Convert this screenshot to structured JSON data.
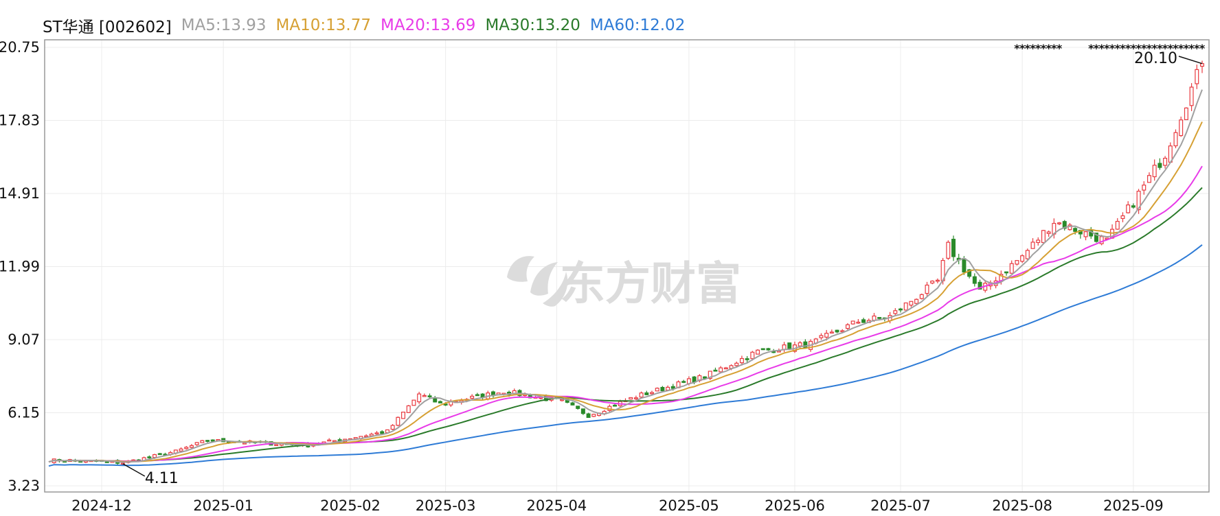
{
  "legend": {
    "stock": "ST华通 [002602]",
    "ma5": "MA5:13.93",
    "ma10": "MA10:13.77",
    "ma20": "MA20:13.69",
    "ma30": "MA30:13.20",
    "ma60": "MA60:12.02"
  },
  "colors": {
    "up": "#e8393f",
    "down": "#2a8a2a",
    "ma5": "#a0a0a0",
    "ma10": "#d6a033",
    "ma20": "#e83be8",
    "ma30": "#2a7a2a",
    "ma60": "#2e7bd6",
    "grid": "#ececec",
    "axis": "#999999"
  },
  "watermark": "东方财富",
  "chart_data": {
    "type": "candlestick",
    "y_ticks": [
      "20.75",
      "17.83",
      "14.91",
      "11.99",
      "9.07",
      "6.15",
      "3.23"
    ],
    "x_ticks": [
      "2024-12",
      "2025-01",
      "2025-02",
      "2025-03",
      "2025-04",
      "2025-05",
      "2025-06",
      "2025-07",
      "2025-08",
      "2025-09"
    ],
    "ylim": [
      3.23,
      20.75
    ],
    "grid": true,
    "annotations": {
      "low_label": "4.11",
      "high_label": "20.10"
    },
    "trend_keypoints": [
      {
        "date": "2024-11-22",
        "price": 4.25
      },
      {
        "date": "2024-12-06",
        "price": 4.15
      },
      {
        "date": "2024-12-20",
        "price": 4.6
      },
      {
        "date": "2024-12-30",
        "price": 5.05
      },
      {
        "date": "2025-01-10",
        "price": 4.95
      },
      {
        "date": "2025-01-24",
        "price": 4.85
      },
      {
        "date": "2025-02-14",
        "price": 5.4
      },
      {
        "date": "2025-02-24",
        "price": 6.9
      },
      {
        "date": "2025-02-28",
        "price": 6.5
      },
      {
        "date": "2025-03-18",
        "price": 7.0
      },
      {
        "date": "2025-04-02",
        "price": 6.6
      },
      {
        "date": "2025-04-09",
        "price": 6.05
      },
      {
        "date": "2025-04-22",
        "price": 6.8
      },
      {
        "date": "2025-05-09",
        "price": 7.6
      },
      {
        "date": "2025-05-23",
        "price": 8.6
      },
      {
        "date": "2025-06-06",
        "price": 8.9
      },
      {
        "date": "2025-06-19",
        "price": 9.8
      },
      {
        "date": "2025-06-27",
        "price": 10.0
      },
      {
        "date": "2025-07-10",
        "price": 11.4
      },
      {
        "date": "2025-07-14",
        "price": 12.8
      },
      {
        "date": "2025-07-22",
        "price": 11.0
      },
      {
        "date": "2025-08-01",
        "price": 12.4
      },
      {
        "date": "2025-08-11",
        "price": 13.8
      },
      {
        "date": "2025-08-25",
        "price": 13.0
      },
      {
        "date": "2025-09-03",
        "price": 15.2
      },
      {
        "date": "2025-09-09",
        "price": 16.5
      },
      {
        "date": "2025-09-15",
        "price": 18.6
      },
      {
        "date": "2025-09-18",
        "price": 20.1
      }
    ]
  }
}
